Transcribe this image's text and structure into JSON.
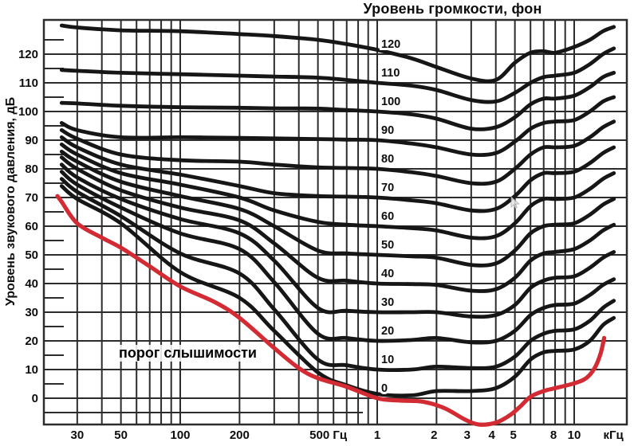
{
  "title": "Уровень громкости, фон",
  "y_axis_title": "Уровень звукового давления, дБ",
  "threshold_label": "порог слышимости",
  "colors": {
    "curve_black": "#161616",
    "threshold_red": "#d32b33",
    "grid": "#2c2c2c",
    "background": "#ffffff",
    "text": "#0d0d0d"
  },
  "chart_data": {
    "type": "line",
    "x_scale": "log",
    "x_range_hz": [
      20,
      18500
    ],
    "y_range_db": [
      -9,
      132
    ],
    "grid": "on",
    "x_ticks": [
      {
        "f": 30,
        "label": "30"
      },
      {
        "f": 50,
        "label": "50"
      },
      {
        "f": 100,
        "label": "100"
      },
      {
        "f": 200,
        "label": "200"
      },
      {
        "f": 500,
        "label": "500 Гц",
        "dx": 13
      },
      {
        "f": 1000,
        "label": "1"
      },
      {
        "f": 2000,
        "label": "2",
        "dx": -3
      },
      {
        "f": 3000,
        "label": "3",
        "dx": -5
      },
      {
        "f": 4000,
        "label": "4",
        "dx": -5
      },
      {
        "f": 5000,
        "label": "5",
        "dx": -2
      },
      {
        "f": 8000,
        "label": "8",
        "dx": -2
      },
      {
        "f": 10000,
        "label": "10"
      },
      {
        "f": 15800,
        "label": "кГц"
      }
    ],
    "y_ticks": [
      0,
      10,
      20,
      30,
      40,
      50,
      60,
      70,
      80,
      90,
      100,
      110,
      120
    ],
    "grid_x_freqs": [
      30,
      40,
      50,
      60,
      70,
      80,
      90,
      100,
      200,
      300,
      400,
      500,
      600,
      700,
      800,
      900,
      1000,
      2000,
      3000,
      4000,
      5000,
      6000,
      7000,
      8000,
      9000,
      10000
    ],
    "grid_y_step_db": 10,
    "frequencies": [
      25,
      30,
      50,
      100,
      200,
      300,
      500,
      700,
      1000,
      1500,
      2000,
      3000,
      4000,
      5000,
      6000,
      7000,
      8000,
      10000,
      12000,
      14000,
      15900
    ],
    "series": [
      {
        "phon": 0,
        "label": "0",
        "values": [
          74,
          69.5,
          61,
          44,
          35,
          23.5,
          9,
          4.5,
          1.5,
          1,
          2.5,
          2.5,
          3.5,
          7.5,
          13.5,
          16,
          16.5,
          17,
          20,
          25.5,
          28
        ]
      },
      {
        "phon": 10,
        "label": "10",
        "values": [
          76.5,
          72,
          63.5,
          50.5,
          43.5,
          31,
          13.5,
          11.5,
          10,
          10,
          11,
          10.5,
          11,
          14.5,
          20,
          22.5,
          23.5,
          24,
          27,
          31.5,
          34
        ]
      },
      {
        "phon": 20,
        "label": "20",
        "values": [
          79,
          74.5,
          66.5,
          57.5,
          52,
          40.5,
          22.5,
          21,
          20,
          20.3,
          21,
          19.5,
          20,
          23.5,
          29,
          31.5,
          32.5,
          33,
          36,
          39.5,
          41.5
        ]
      },
      {
        "phon": 30,
        "label": "30",
        "values": [
          81.5,
          77,
          69.5,
          62.5,
          57.5,
          48,
          31.5,
          30.5,
          30,
          30,
          30,
          28.5,
          29,
          32.5,
          38.5,
          41,
          42,
          42.5,
          45.5,
          49,
          51
        ]
      },
      {
        "phon": 40,
        "label": "40",
        "values": [
          84,
          80,
          72.5,
          66.5,
          62,
          54,
          42,
          41,
          40,
          39.8,
          39.5,
          37.5,
          38,
          42,
          48,
          50.5,
          51,
          52,
          55,
          58.5,
          60.5
        ]
      },
      {
        "phon": 50,
        "label": "50",
        "values": [
          86,
          82.5,
          75.5,
          70.5,
          66,
          60,
          51.5,
          50.5,
          50,
          49.5,
          49,
          46.5,
          47,
          51.5,
          57.5,
          60,
          60.5,
          61,
          64,
          67.5,
          69.5
        ]
      },
      {
        "phon": 60,
        "label": "60",
        "values": [
          88.5,
          85,
          78.5,
          74.5,
          70,
          65.5,
          61.5,
          60.5,
          60,
          59.3,
          58.5,
          56,
          56.5,
          61,
          67,
          69.5,
          69.5,
          70,
          73,
          76.5,
          78.5
        ]
      },
      {
        "phon": 70,
        "label": "70",
        "values": [
          91,
          87.5,
          81.5,
          78,
          74,
          71.5,
          70.5,
          70.3,
          70,
          69,
          68,
          65.5,
          66,
          70.5,
          76,
          78.5,
          78.5,
          79,
          82,
          85.5,
          87.5
        ]
      },
      {
        "phon": 80,
        "label": "80",
        "values": [
          93.5,
          90.5,
          85,
          83,
          82.5,
          81.5,
          80.5,
          80.3,
          80,
          78.8,
          77.5,
          75,
          75.5,
          80,
          85,
          87.5,
          87.5,
          88,
          91,
          94.5,
          96.5
        ]
      },
      {
        "phon": 90,
        "label": "90",
        "values": [
          96,
          93.5,
          91,
          91,
          90.8,
          90.6,
          90.4,
          90.2,
          90,
          88.8,
          87.5,
          85,
          85.5,
          89.5,
          94,
          96,
          96.5,
          97,
          100,
          103.5,
          105
        ]
      },
      {
        "phon": 100,
        "label": "100",
        "values": [
          103,
          102.8,
          102,
          101.5,
          101.3,
          101.1,
          101,
          100.5,
          100,
          99,
          97.5,
          94,
          94.5,
          98,
          102.5,
          104.5,
          104.5,
          105.5,
          108.5,
          112,
          113.5
        ]
      },
      {
        "phon": 110,
        "label": "110",
        "values": [
          114.5,
          114.2,
          113.5,
          113,
          112.5,
          112.2,
          111.8,
          111,
          110,
          109,
          107.5,
          104,
          103.5,
          106.5,
          110,
          112,
          112.5,
          113.5,
          116.5,
          120,
          122
        ]
      },
      {
        "phon": 120,
        "label": "120",
        "values": [
          130,
          129.3,
          128.3,
          128,
          127,
          126.3,
          125,
          123.5,
          121.5,
          118.5,
          115.5,
          111.5,
          111,
          117,
          120.5,
          121,
          120.5,
          122.5,
          125,
          128,
          129.5
        ]
      }
    ],
    "threshold": {
      "label": "порог слышимости",
      "points": [
        [
          23.8,
          70.5
        ],
        [
          25,
          68.5
        ],
        [
          30,
          61
        ],
        [
          40,
          56
        ],
        [
          50,
          52.5
        ],
        [
          70,
          46
        ],
        [
          100,
          39
        ],
        [
          150,
          33.5
        ],
        [
          200,
          28
        ],
        [
          300,
          17.5
        ],
        [
          400,
          10.5
        ],
        [
          500,
          7
        ],
        [
          700,
          4
        ],
        [
          1000,
          0
        ],
        [
          1300,
          -0.8
        ],
        [
          1700,
          -1.2
        ],
        [
          2200,
          -3.5
        ],
        [
          2800,
          -7.5
        ],
        [
          3300,
          -9.2
        ],
        [
          4000,
          -8.5
        ],
        [
          4700,
          -6
        ],
        [
          5300,
          -3
        ],
        [
          6000,
          0.5
        ],
        [
          7000,
          2.5
        ],
        [
          8000,
          3.5
        ],
        [
          10000,
          5.2
        ],
        [
          11500,
          7
        ],
        [
          12700,
          10.5
        ],
        [
          13600,
          15.5
        ],
        [
          14200,
          21
        ]
      ]
    }
  }
}
